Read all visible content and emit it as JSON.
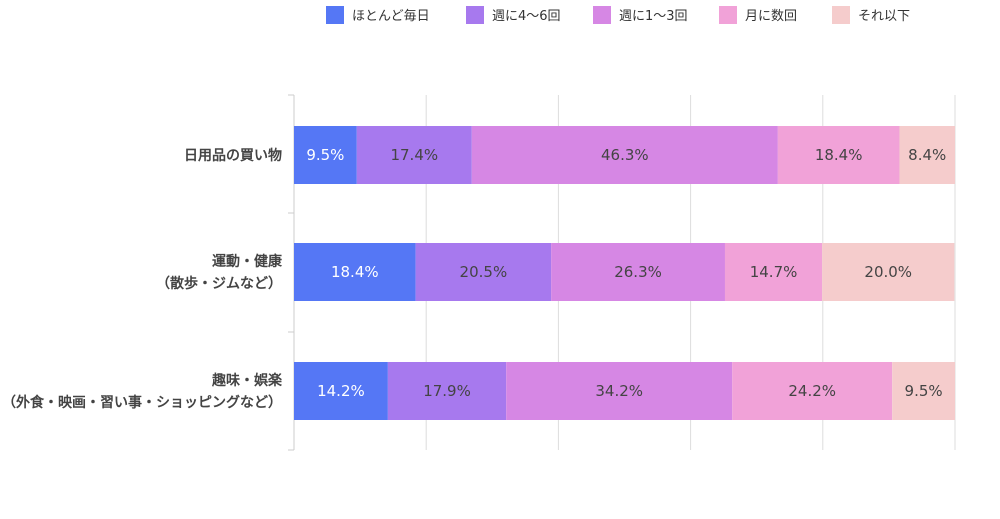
{
  "chart_data": {
    "type": "bar",
    "orientation": "horizontal",
    "stacked": true,
    "percent": true,
    "xlim": [
      0,
      100
    ],
    "grid": true,
    "legend_position": "top",
    "categories": [
      [
        "日用品の買い物"
      ],
      [
        "運動・健康",
        "（散歩・ジムなど）"
      ],
      [
        "趣味・娯楽",
        "（外食・映画・習い事・ショッピングなど）"
      ]
    ],
    "series": [
      {
        "name": "ほとんど毎日",
        "color": "#5577f5",
        "label_color": "#ffffff",
        "values": [
          9.5,
          18.4,
          14.2
        ],
        "labels": [
          "9.5%",
          "18.4%",
          "14.2%"
        ]
      },
      {
        "name": "週に4〜6回",
        "color": "#a779ee",
        "label_color": "#444444",
        "values": [
          17.4,
          20.5,
          17.9
        ],
        "labels": [
          "17.4%",
          "20.5%",
          "17.9%"
        ]
      },
      {
        "name": "週に1〜3回",
        "color": "#d687e4",
        "label_color": "#444444",
        "values": [
          46.3,
          26.3,
          34.2
        ],
        "labels": [
          "46.3%",
          "26.3%",
          "34.2%"
        ]
      },
      {
        "name": "月に数回",
        "color": "#f1a2d8",
        "label_color": "#444444",
        "values": [
          18.4,
          14.7,
          24.2
        ],
        "labels": [
          "18.4%",
          "14.7%",
          "24.2%"
        ]
      },
      {
        "name": "それ以下",
        "color": "#f5cccc",
        "label_color": "#444444",
        "values": [
          8.4,
          20.0,
          9.5
        ],
        "labels": [
          "8.4%",
          "20.0%",
          "9.5%"
        ]
      }
    ]
  }
}
